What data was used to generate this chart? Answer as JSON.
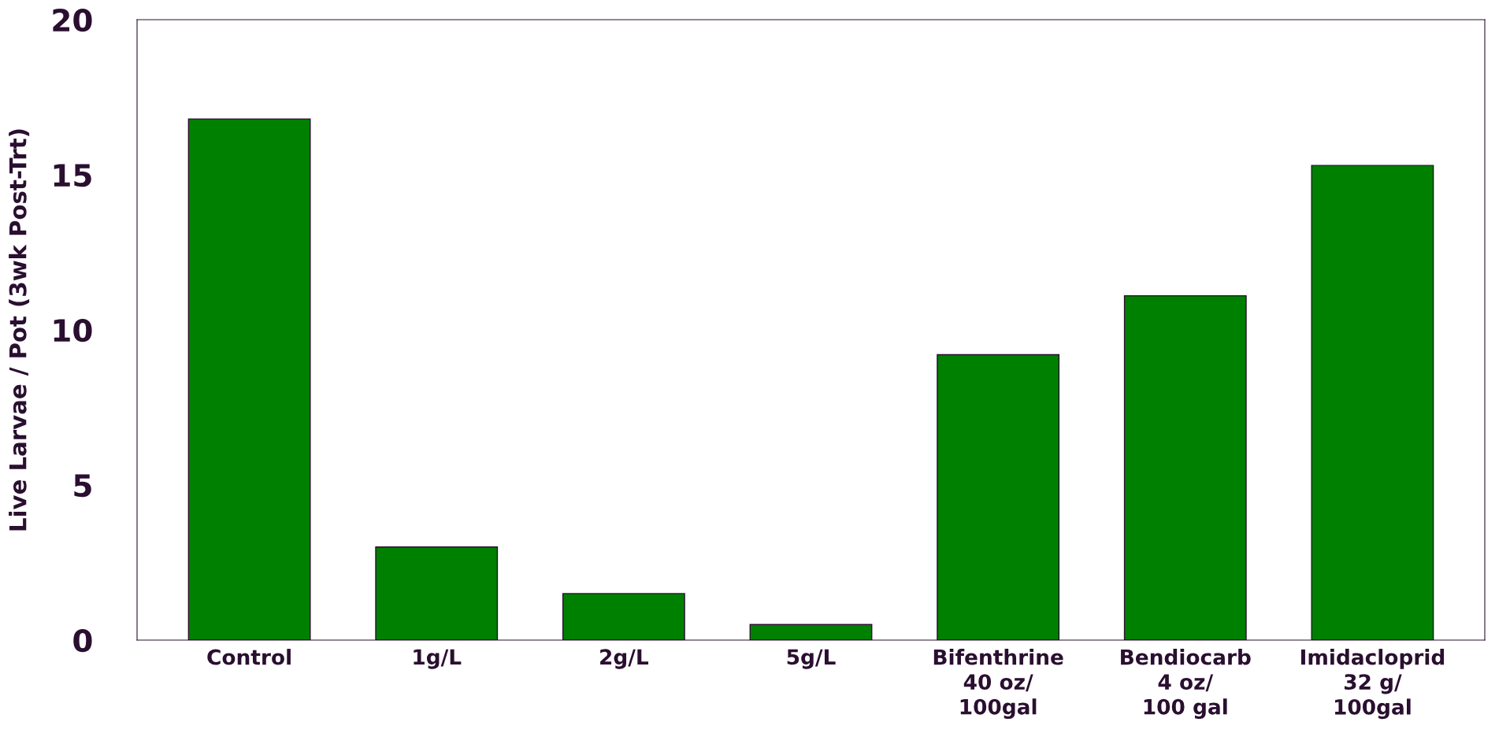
{
  "chart_data": {
    "type": "bar",
    "ylabel": "Live Larvae / Pot (3wk Post-Trt)",
    "categories": [
      "Control",
      "1g/L",
      "2g/L",
      "5g/L",
      "Bifenthrine\n40 oz/\n100gal",
      "Bendiocarb\n4 oz/\n100 gal",
      "Imidacloprid\n32 g/\n100gal"
    ],
    "values": [
      16.8,
      3.0,
      1.5,
      0.5,
      9.2,
      11.1,
      15.3
    ],
    "color": "#008000",
    "ylim": [
      0,
      20
    ],
    "yticks": [
      0,
      5,
      10,
      15,
      20
    ],
    "grid": false,
    "legend": false
  }
}
